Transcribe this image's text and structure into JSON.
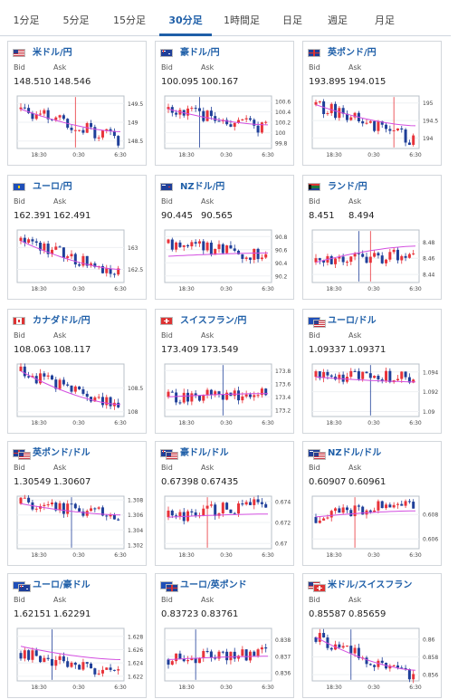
{
  "tabs": [
    {
      "label": "1分足",
      "active": false
    },
    {
      "label": "5分足",
      "active": false
    },
    {
      "label": "15分足",
      "active": false
    },
    {
      "label": "30分足",
      "active": true
    },
    {
      "label": "1時間足",
      "active": false
    },
    {
      "label": "日足",
      "active": false
    },
    {
      "label": "週足",
      "active": false
    },
    {
      "label": "月足",
      "active": false
    }
  ],
  "labels": {
    "bid": "Bid",
    "ask": "Ask"
  },
  "colors": {
    "accent": "#1f5fa8",
    "up": "#e8333a",
    "down": "#1f3f99",
    "ma": "#d34ee0"
  },
  "cards": [
    {
      "pair": "米ドル/円",
      "flag": "us-flag-icon",
      "bid": "148.510",
      "ask": "148.546",
      "chart_data": {
        "type": "candlestick",
        "x_ticks": [
          "18:30",
          "0:30",
          "6:30"
        ],
        "y_ticks": [
          "148.5",
          "149",
          "149.5"
        ],
        "ylim": [
          148.3,
          149.7
        ],
        "start": 149.35,
        "end": 148.55,
        "ma": [
          149.35,
          148.75
        ],
        "spikes": [
          14
        ]
      }
    },
    {
      "pair": "豪ドル/円",
      "flag": "au-flag-icon",
      "bid": "100.095",
      "ask": "100.167",
      "chart_data": {
        "type": "candlestick",
        "x_ticks": [
          "18:30",
          "0:30",
          "6:30"
        ],
        "y_ticks": [
          "99.8",
          "100",
          "100.2",
          "100.4",
          "100.6"
        ],
        "ylim": [
          99.7,
          100.7
        ],
        "start": 100.45,
        "end": 100.1,
        "ma": [
          100.45,
          100.15
        ],
        "spikes": [
          8
        ]
      }
    },
    {
      "pair": "英ポンド/円",
      "flag": "gb-flag-icon",
      "bid": "193.895",
      "ask": "194.015",
      "chart_data": {
        "type": "candlestick",
        "x_ticks": [
          "18:30",
          "0:30",
          "6:30"
        ],
        "y_ticks": [
          "194",
          "194.5",
          "195"
        ],
        "ylim": [
          193.7,
          195.2
        ],
        "start": 194.95,
        "end": 193.95,
        "ma": [
          194.95,
          194.35
        ],
        "spikes": [
          20
        ]
      }
    },
    {
      "pair": "ユーロ/円",
      "flag": "eu-flag-icon",
      "bid": "162.391",
      "ask": "162.491",
      "chart_data": {
        "type": "candlestick",
        "x_ticks": [
          "18:30",
          "0:30",
          "6:30"
        ],
        "y_ticks": [
          "162.5",
          "163"
        ],
        "ylim": [
          162.2,
          163.4
        ],
        "start": 163.15,
        "end": 162.45,
        "ma": [
          163.15,
          162.5
        ],
        "spikes": []
      }
    },
    {
      "pair": "NZドル/円",
      "flag": "nz-flag-icon",
      "bid": "90.445",
      "ask": "90.565",
      "chart_data": {
        "type": "candlestick",
        "x_ticks": [
          "18:30",
          "0:30",
          "6:30"
        ],
        "y_ticks": [
          "90.2",
          "90.4",
          "90.6",
          "90.8"
        ],
        "ylim": [
          90.1,
          90.9
        ],
        "start": 90.7,
        "end": 90.5,
        "ma": [
          90.5,
          90.55
        ],
        "spikes": []
      }
    },
    {
      "pair": "ランド/円",
      "flag": "za-flag-icon",
      "bid": "8.451",
      "ask": "8.494",
      "chart_data": {
        "type": "candlestick",
        "x_ticks": [
          "18:30",
          "0:30",
          "6:30"
        ],
        "y_ticks": [
          "8.44",
          "8.46",
          "8.48"
        ],
        "ylim": [
          8.43,
          8.495
        ],
        "start": 8.455,
        "end": 8.465,
        "ma": [
          8.455,
          8.475
        ],
        "spikes": [
          11,
          14
        ]
      }
    },
    {
      "pair": "カナダドル/円",
      "flag": "ca-flag-icon",
      "bid": "108.063",
      "ask": "108.117",
      "chart_data": {
        "type": "candlestick",
        "x_ticks": [
          "18:30",
          "0:30",
          "6:30"
        ],
        "y_ticks": [
          "108",
          "108.5"
        ],
        "ylim": [
          107.9,
          109.0
        ],
        "start": 108.85,
        "end": 108.1,
        "ma": [
          108.85,
          108.15
        ],
        "spikes": []
      }
    },
    {
      "pair": "スイスフラン/円",
      "flag": "ch-flag-icon",
      "bid": "173.409",
      "ask": "173.549",
      "chart_data": {
        "type": "candlestick",
        "x_ticks": [
          "18:30",
          "0:30",
          "6:30"
        ],
        "y_ticks": [
          "173.2",
          "173.4",
          "173.6",
          "173.8"
        ],
        "ylim": [
          173.1,
          173.9
        ],
        "start": 173.4,
        "end": 173.45,
        "ma": [
          173.4,
          173.45
        ],
        "spikes": [
          14
        ]
      }
    },
    {
      "pair": "ユーロ/ドル",
      "flag": "eu-us-flag-icon",
      "bid": "1.09337",
      "ask": "1.09371",
      "chart_data": {
        "type": "candlestick",
        "x_ticks": [
          "18:30",
          "0:30",
          "6:30"
        ],
        "y_ticks": [
          "1.09",
          "1.092",
          "1.094"
        ],
        "ylim": [
          1.0895,
          1.0948
        ],
        "start": 1.0935,
        "end": 1.0935,
        "ma": [
          1.0935,
          1.093
        ],
        "spikes": [
          14
        ]
      }
    },
    {
      "pair": "英ポンド/ドル",
      "flag": "gb-us-flag-icon",
      "bid": "1.30549",
      "ask": "1.30607",
      "chart_data": {
        "type": "candlestick",
        "x_ticks": [
          "18:30",
          "0:30",
          "6:30"
        ],
        "y_ticks": [
          "1.302",
          "1.304",
          "1.306",
          "1.308"
        ],
        "ylim": [
          1.3015,
          1.3085
        ],
        "start": 1.3075,
        "end": 1.3058,
        "ma": [
          1.3075,
          1.306
        ],
        "spikes": [
          13
        ]
      }
    },
    {
      "pair": "豪ドル/ドル",
      "flag": "au-us-flag-icon",
      "bid": "0.67398",
      "ask": "0.67435",
      "chart_data": {
        "type": "candlestick",
        "x_ticks": [
          "18:30",
          "0:30",
          "6:30"
        ],
        "y_ticks": [
          "0.67",
          "0.672",
          "0.674"
        ],
        "ylim": [
          0.6695,
          0.6745
        ],
        "start": 0.6725,
        "end": 0.6739,
        "ma": [
          0.6725,
          0.6728
        ],
        "spikes": [
          10
        ]
      }
    },
    {
      "pair": "NZドル/ドル",
      "flag": "nz-us-flag-icon",
      "bid": "0.60907",
      "ask": "0.60961",
      "chart_data": {
        "type": "candlestick",
        "x_ticks": [
          "18:30",
          "0:30",
          "6:30"
        ],
        "y_ticks": [
          "0.606",
          "0.608"
        ],
        "ylim": [
          0.6052,
          0.6095
        ],
        "start": 0.6078,
        "end": 0.609,
        "ma": [
          0.6078,
          0.6083
        ],
        "spikes": [
          10
        ]
      }
    },
    {
      "pair": "ユーロ/豪ドル",
      "flag": "eu-au-flag-icon",
      "bid": "1.62151",
      "ask": "1.62291",
      "chart_data": {
        "type": "candlestick",
        "x_ticks": [
          "18:30",
          "0:30",
          "6:30"
        ],
        "y_ticks": [
          "1.622",
          "1.624",
          "1.626",
          "1.628"
        ],
        "ylim": [
          1.6213,
          1.6292
        ],
        "start": 1.6255,
        "end": 1.6222,
        "ma": [
          1.6265,
          1.6245
        ],
        "spikes": [
          8
        ]
      }
    },
    {
      "pair": "ユーロ/英ポンド",
      "flag": "eu-gb-flag-icon",
      "bid": "0.83723",
      "ask": "0.83761",
      "chart_data": {
        "type": "candlestick",
        "x_ticks": [
          "18:30",
          "0:30",
          "6:30"
        ],
        "y_ticks": [
          "0.836",
          "0.837",
          "0.838"
        ],
        "ylim": [
          0.8355,
          0.8387
        ],
        "start": 0.8368,
        "end": 0.8372,
        "ma": [
          0.8368,
          0.837
        ],
        "spikes": [
          7
        ]
      }
    },
    {
      "pair": "米ドル/スイスフラン",
      "flag": "us-ch-flag-icon",
      "bid": "0.85587",
      "ask": "0.85659",
      "chart_data": {
        "type": "candlestick",
        "x_ticks": [
          "18:30",
          "0:30",
          "6:30"
        ],
        "y_ticks": [
          "0.856",
          "0.858",
          "0.86"
        ],
        "ylim": [
          0.8553,
          0.8612
        ],
        "start": 0.8602,
        "end": 0.8557,
        "ma": [
          0.8602,
          0.8565
        ],
        "spikes": [
          9
        ]
      }
    }
  ]
}
